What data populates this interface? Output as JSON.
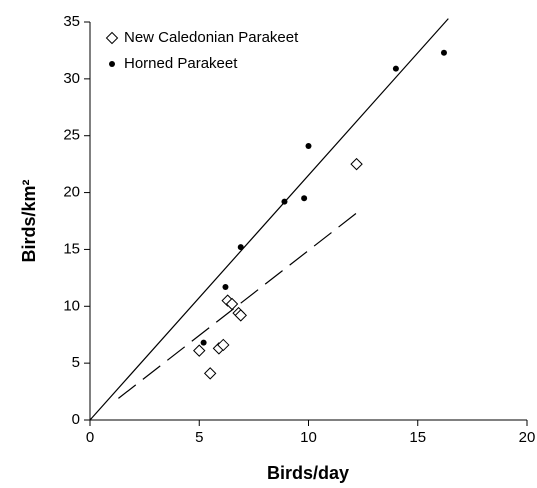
{
  "chart_data": {
    "type": "scatter",
    "xlabel": "Birds/day",
    "ylabel": "Birds/km²",
    "xlim": [
      0,
      20
    ],
    "xticks": [
      0,
      5,
      10,
      15,
      20
    ],
    "ylim": [
      0,
      35
    ],
    "yticks": [
      0,
      5,
      10,
      15,
      20,
      25,
      30,
      35
    ],
    "legend": "upper left",
    "grid": false,
    "series": [
      {
        "name": "New Caledonian Parakeet",
        "color": "#000000",
        "marker": "diamond",
        "x": [
          5.0,
          5.5,
          5.9,
          6.1,
          6.3,
          6.5,
          6.8,
          6.9,
          12.2
        ],
        "values": [
          6.1,
          4.1,
          6.3,
          6.6,
          10.5,
          10.2,
          9.4,
          9.2,
          22.5
        ],
        "fit": {
          "x": [
            1.3,
            12.2
          ],
          "y": [
            1.9,
            18.2
          ],
          "dashed": true
        }
      },
      {
        "name": "Horned Parakeet",
        "color": "#000000",
        "marker": "circle",
        "x": [
          5.2,
          6.2,
          6.9,
          8.9,
          9.8,
          10.0,
          14.0,
          16.2
        ],
        "values": [
          6.8,
          11.7,
          15.2,
          19.2,
          19.5,
          24.1,
          30.9,
          32.3
        ],
        "fit": {
          "x": [
            0,
            16.4
          ],
          "y": [
            0,
            35.3
          ],
          "dashed": false
        }
      }
    ]
  }
}
